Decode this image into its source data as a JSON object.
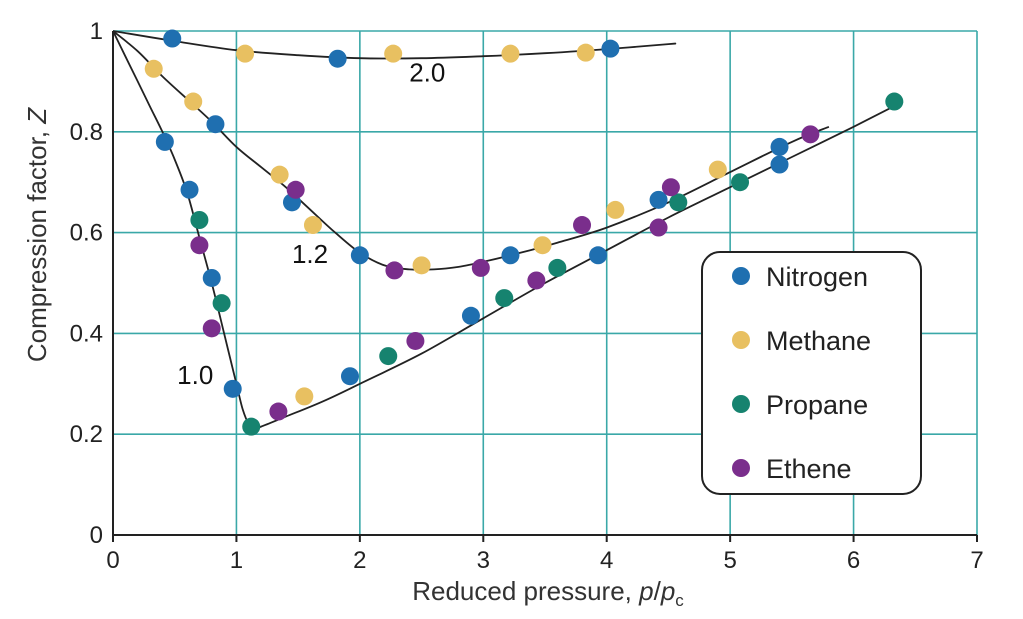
{
  "chart_data": {
    "type": "scatter",
    "xlabel": "Reduced pressure, p/pc",
    "xlabel_parts": {
      "main": "Reduced pressure, ",
      "p1": "p",
      "slash": "/",
      "p2": "p",
      "sub": "c"
    },
    "ylabel": "Compression factor, Z",
    "ylabel_parts": {
      "main": "Compression factor, ",
      "var": "Z"
    },
    "xlim": [
      0,
      7
    ],
    "ylim": [
      0,
      1
    ],
    "x_ticks": [
      "0",
      "1",
      "2",
      "3",
      "4",
      "5",
      "6",
      "7"
    ],
    "y_ticks": [
      "0",
      "0.2",
      "0.4",
      "0.6",
      "0.8",
      "1"
    ],
    "grid": true,
    "legend_position": "right",
    "colors": {
      "grid": "#3aa8a8",
      "axis": "#222222",
      "curve": "#222222",
      "Nitrogen": "#1f6fb0",
      "Methane": "#e8c061",
      "Propane": "#16836f",
      "Ethene": "#7a2e8c"
    },
    "curves": [
      {
        "label": "2.0",
        "label_at": [
          2.4,
          0.9
        ],
        "points": [
          [
            0,
            1
          ],
          [
            0.5,
            0.98
          ],
          [
            1.0,
            0.962
          ],
          [
            1.5,
            0.952
          ],
          [
            2.0,
            0.946
          ],
          [
            2.5,
            0.946
          ],
          [
            3.0,
            0.95
          ],
          [
            3.5,
            0.956
          ],
          [
            4.0,
            0.964
          ],
          [
            4.5,
            0.974
          ],
          [
            4.55,
            0.975
          ]
        ]
      },
      {
        "label": "1.2",
        "label_at": [
          1.45,
          0.54
        ],
        "points": [
          [
            0,
            1
          ],
          [
            0.2,
            0.96
          ],
          [
            0.4,
            0.91
          ],
          [
            0.6,
            0.865
          ],
          [
            0.8,
            0.82
          ],
          [
            1.0,
            0.77
          ],
          [
            1.2,
            0.73
          ],
          [
            1.4,
            0.69
          ],
          [
            1.6,
            0.645
          ],
          [
            1.8,
            0.6
          ],
          [
            2.0,
            0.56
          ],
          [
            2.2,
            0.535
          ],
          [
            2.4,
            0.527
          ],
          [
            2.6,
            0.527
          ],
          [
            2.8,
            0.532
          ],
          [
            3.0,
            0.542
          ],
          [
            3.3,
            0.56
          ],
          [
            3.6,
            0.58
          ],
          [
            4.0,
            0.61
          ],
          [
            4.5,
            0.66
          ],
          [
            5.0,
            0.72
          ],
          [
            5.5,
            0.78
          ],
          [
            5.8,
            0.81
          ]
        ]
      },
      {
        "label": "1.0",
        "label_at": [
          0.52,
          0.3
        ],
        "points": [
          [
            0,
            1
          ],
          [
            0.1,
            0.95
          ],
          [
            0.2,
            0.9
          ],
          [
            0.3,
            0.85
          ],
          [
            0.4,
            0.8
          ],
          [
            0.5,
            0.745
          ],
          [
            0.6,
            0.68
          ],
          [
            0.7,
            0.59
          ],
          [
            0.8,
            0.5
          ],
          [
            0.9,
            0.4
          ],
          [
            1.0,
            0.3
          ],
          [
            1.05,
            0.25
          ],
          [
            1.1,
            0.22
          ],
          [
            1.15,
            0.212
          ],
          [
            1.2,
            0.215
          ],
          [
            1.4,
            0.235
          ],
          [
            1.7,
            0.265
          ],
          [
            2.0,
            0.3
          ],
          [
            2.5,
            0.36
          ],
          [
            3.0,
            0.43
          ],
          [
            3.5,
            0.5
          ],
          [
            4.0,
            0.565
          ],
          [
            4.5,
            0.63
          ],
          [
            5.0,
            0.69
          ],
          [
            5.5,
            0.75
          ],
          [
            6.0,
            0.81
          ],
          [
            6.4,
            0.86
          ]
        ]
      }
    ],
    "series": [
      {
        "name": "Nitrogen",
        "points": [
          [
            0.48,
            0.985
          ],
          [
            1.82,
            0.945
          ],
          [
            4.03,
            0.965
          ],
          [
            0.42,
            0.78
          ],
          [
            0.83,
            0.815
          ],
          [
            1.45,
            0.66
          ],
          [
            2.0,
            0.555
          ],
          [
            3.22,
            0.555
          ],
          [
            3.93,
            0.555
          ],
          [
            4.42,
            0.665
          ],
          [
            5.4,
            0.77
          ],
          [
            5.4,
            0.735
          ],
          [
            0.62,
            0.685
          ],
          [
            0.8,
            0.51
          ],
          [
            0.97,
            0.29
          ],
          [
            1.92,
            0.315
          ],
          [
            2.9,
            0.435
          ]
        ]
      },
      {
        "name": "Methane",
        "points": [
          [
            0.33,
            0.925
          ],
          [
            1.07,
            0.955
          ],
          [
            2.27,
            0.955
          ],
          [
            3.22,
            0.955
          ],
          [
            3.83,
            0.957
          ],
          [
            0.65,
            0.86
          ],
          [
            1.35,
            0.715
          ],
          [
            1.62,
            0.615
          ],
          [
            2.5,
            0.535
          ],
          [
            3.48,
            0.575
          ],
          [
            4.07,
            0.645
          ],
          [
            4.9,
            0.725
          ],
          [
            1.55,
            0.275
          ]
        ]
      },
      {
        "name": "Propane",
        "points": [
          [
            0.7,
            0.625
          ],
          [
            0.88,
            0.46
          ],
          [
            1.12,
            0.215
          ],
          [
            2.23,
            0.355
          ],
          [
            3.17,
            0.47
          ],
          [
            3.6,
            0.53
          ],
          [
            4.58,
            0.66
          ],
          [
            5.08,
            0.7
          ],
          [
            6.33,
            0.86
          ]
        ]
      },
      {
        "name": "Ethene",
        "points": [
          [
            1.48,
            0.685
          ],
          [
            0.7,
            0.575
          ],
          [
            0.8,
            0.41
          ],
          [
            1.34,
            0.245
          ],
          [
            2.45,
            0.385
          ],
          [
            2.28,
            0.525
          ],
          [
            2.98,
            0.53
          ],
          [
            3.43,
            0.505
          ],
          [
            3.8,
            0.615
          ],
          [
            4.42,
            0.61
          ],
          [
            4.52,
            0.69
          ],
          [
            5.65,
            0.795
          ]
        ]
      }
    ]
  }
}
